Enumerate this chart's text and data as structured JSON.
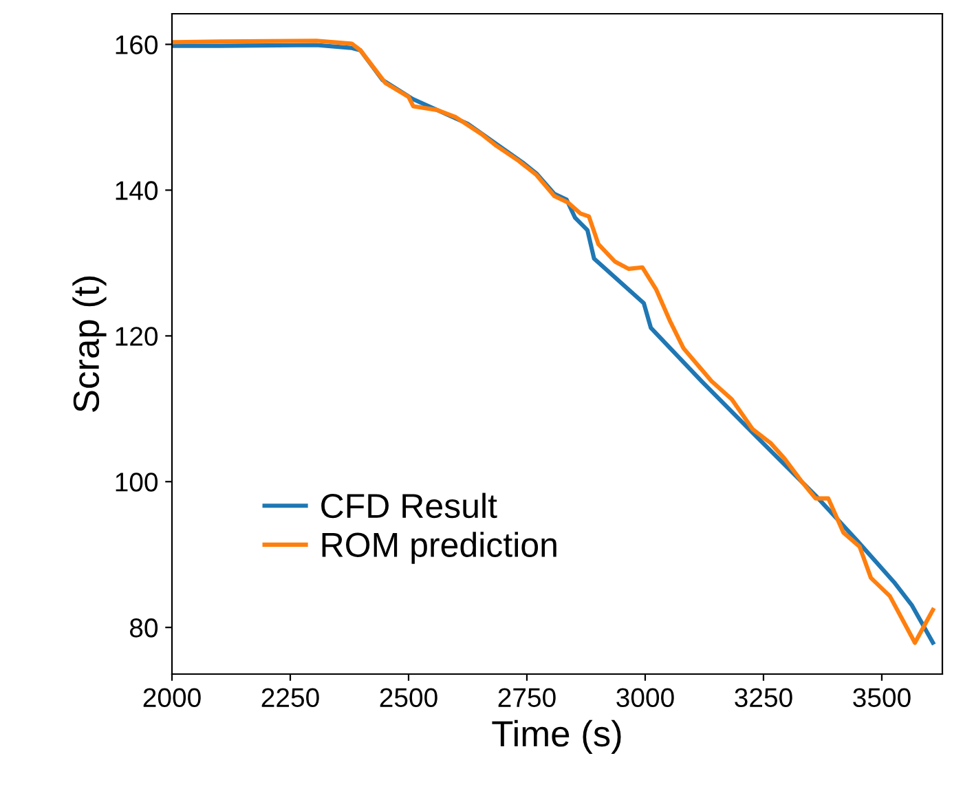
{
  "chart_data": {
    "type": "line",
    "xlabel": "Time (s)",
    "ylabel": "Scrap (t)",
    "xlim": [
      2000,
      3628
    ],
    "ylim": [
      73.6,
      164.2
    ],
    "xticks": [
      2000,
      2250,
      2500,
      2750,
      3000,
      3250,
      3500
    ],
    "yticks": [
      80,
      100,
      120,
      140,
      160
    ],
    "grid": false,
    "legend": "bottom left",
    "series": [
      {
        "name": "CFD Result",
        "color": "#1f77b4",
        "x": [
          2000,
          2102,
          2305,
          2380,
          2398,
          2445,
          2509,
          2625,
          2741,
          2770,
          2808,
          2834,
          2852,
          2878,
          2892,
          2997,
          3012,
          3119,
          3235,
          3360,
          3448,
          3526,
          3564,
          3608
        ],
        "values": [
          159.8,
          159.8,
          159.9,
          159.5,
          159.2,
          155.1,
          152.5,
          149.1,
          143.8,
          142.3,
          139.5,
          138.7,
          136.2,
          134.5,
          130.6,
          124.5,
          121.1,
          113.8,
          106.2,
          98.1,
          91.9,
          86.2,
          83.0,
          77.9
        ]
      },
      {
        "name": "ROM prediction",
        "color": "#ff7f0e",
        "x": [
          2000,
          2102,
          2305,
          2380,
          2398,
          2451,
          2500,
          2510,
          2560,
          2600,
          2654,
          2683,
          2733,
          2770,
          2808,
          2837,
          2863,
          2881,
          2901,
          2936,
          2965,
          2994,
          3023,
          3052,
          3081,
          3140,
          3183,
          3227,
          3265,
          3294,
          3331,
          3360,
          3387,
          3419,
          3453,
          3477,
          3517,
          3570,
          3608
        ],
        "values": [
          160.3,
          160.4,
          160.5,
          160.1,
          159.2,
          154.7,
          152.8,
          151.5,
          151,
          150,
          147.7,
          146.2,
          144,
          142.1,
          139.2,
          138.3,
          136.8,
          136.4,
          132.6,
          130.2,
          129.2,
          129.4,
          126.4,
          122.1,
          118.3,
          113.8,
          111.3,
          107.2,
          105.3,
          103.2,
          100,
          97.7,
          97.7,
          93,
          91.1,
          86.8,
          84.3,
          77.9,
          82.4
        ]
      }
    ]
  }
}
